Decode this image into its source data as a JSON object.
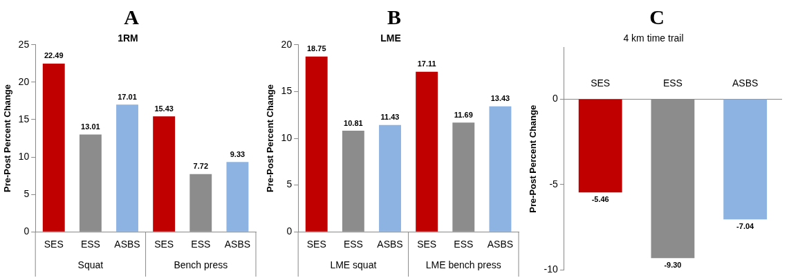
{
  "chart_data": [
    {
      "type": "bar",
      "title": "A",
      "subtitle": "1RM",
      "ylabel": "Pre-Post Percent Change",
      "categories": [
        "SES",
        "ESS",
        "ASBS",
        "SES",
        "ESS",
        "ASBS"
      ],
      "values": [
        22.49,
        13.01,
        17.01,
        15.43,
        7.72,
        9.33
      ],
      "colors": [
        "#c00000",
        "#8c8c8c",
        "#8db3e2",
        "#c00000",
        "#8c8c8c",
        "#8db3e2"
      ],
      "value_labels": [
        "22.49",
        "13.01",
        "17.01",
        "15.43",
        "7.72",
        "9.33"
      ],
      "annotations": [
        "Squat",
        "Bench press"
      ],
      "ylim": [
        0,
        25
      ],
      "yticks": [
        0,
        5,
        10,
        15,
        20,
        25
      ],
      "grid": false,
      "legend": false
    },
    {
      "type": "bar",
      "title": "B",
      "subtitle": "LME",
      "ylabel": "Pre-Post Percent Change",
      "categories": [
        "SES",
        "ESS",
        "ASBS",
        "SES",
        "ESS",
        "ASBS"
      ],
      "values": [
        18.75,
        10.81,
        11.43,
        17.11,
        11.69,
        13.43
      ],
      "colors": [
        "#c00000",
        "#8c8c8c",
        "#8db3e2",
        "#c00000",
        "#8c8c8c",
        "#8db3e2"
      ],
      "value_labels": [
        "18.75",
        "10.81",
        "11.43",
        "17.11",
        "11.69",
        "13.43"
      ],
      "annotations": [
        "LME squat",
        "LME bench press"
      ],
      "ylim": [
        0,
        20
      ],
      "yticks": [
        0,
        5,
        10,
        15,
        20
      ],
      "grid": false,
      "legend": false
    },
    {
      "type": "bar",
      "title": "C",
      "subtitle": "4 km time trail",
      "ylabel": "Pre-Post Percent Change",
      "categories": [
        "SES",
        "ESS",
        "ASBS"
      ],
      "values": [
        -5.46,
        -9.3,
        -7.04
      ],
      "colors": [
        "#c00000",
        "#8c8c8c",
        "#8db3e2"
      ],
      "value_labels": [
        "-5.46",
        "-9.30",
        "-7.04"
      ],
      "ylim": [
        -10,
        3
      ],
      "yticks": [
        -10,
        -5,
        0
      ],
      "grid": false,
      "legend": false
    }
  ]
}
